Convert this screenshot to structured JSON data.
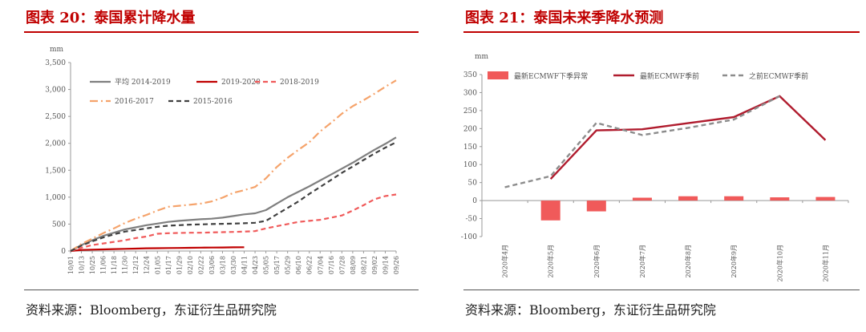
{
  "left": {
    "title": "图表 20：泰国累计降水量",
    "source": "资料来源：Bloomberg，东证衍生品研究院",
    "chart_data": {
      "type": "line",
      "title": "图表 20：泰国累计降水量",
      "ylabel": "mm",
      "ylim": [
        0,
        3500
      ],
      "yticks": [
        "0",
        "500",
        "1,000",
        "1,500",
        "2,000",
        "2,500",
        "3,000",
        "3,500"
      ],
      "xticks": [
        "10/01",
        "10/13",
        "10/25",
        "11/06",
        "11/18",
        "11/30",
        "12/12",
        "12/24",
        "01/05",
        "01/17",
        "01/29",
        "02/10",
        "02/22",
        "03/06",
        "03/18",
        "03/30",
        "04/11",
        "04/23",
        "05/05",
        "05/17",
        "05/29",
        "06/10",
        "06/22",
        "07/04",
        "07/16",
        "07/28",
        "08/09",
        "08/21",
        "09/02",
        "09/14",
        "09/26"
      ],
      "legend_position": "top-left",
      "grid": false,
      "series": [
        {
          "name": "平均 2014-2019",
          "color": "#7f7f7f",
          "style": "solid",
          "values": [
            0,
            110,
            200,
            280,
            340,
            400,
            440,
            480,
            510,
            540,
            560,
            575,
            590,
            600,
            620,
            650,
            680,
            700,
            760,
            880,
            1000,
            1100,
            1200,
            1310,
            1420,
            1530,
            1640,
            1760,
            1880,
            1990,
            2110
          ]
        },
        {
          "name": "2019-2020",
          "color": "#c00000",
          "style": "solid",
          "values": [
            0,
            20,
            25,
            30,
            35,
            40,
            45,
            50,
            52,
            55,
            57,
            60,
            62,
            64,
            66,
            68,
            70
          ]
        },
        {
          "name": "2018-2019",
          "color": "#f05a5a",
          "style": "dash",
          "values": [
            0,
            60,
            110,
            140,
            170,
            200,
            240,
            270,
            320,
            330,
            335,
            340,
            340,
            345,
            350,
            355,
            360,
            370,
            420,
            460,
            500,
            540,
            560,
            580,
            620,
            660,
            750,
            850,
            960,
            1020,
            1050
          ]
        },
        {
          "name": "2016-2017",
          "color": "#f5a36b",
          "style": "dashdot",
          "values": [
            0,
            130,
            230,
            330,
            420,
            520,
            600,
            670,
            750,
            820,
            840,
            860,
            880,
            920,
            990,
            1080,
            1130,
            1190,
            1350,
            1560,
            1730,
            1880,
            2020,
            2220,
            2380,
            2550,
            2690,
            2800,
            2920,
            3050,
            3170
          ]
        },
        {
          "name": "2015-2016",
          "color": "#404040",
          "style": "dash",
          "values": [
            0,
            100,
            180,
            250,
            310,
            360,
            390,
            420,
            450,
            470,
            480,
            490,
            495,
            500,
            505,
            510,
            515,
            525,
            560,
            680,
            800,
            920,
            1060,
            1190,
            1320,
            1450,
            1570,
            1690,
            1810,
            1920,
            2020
          ]
        }
      ]
    }
  },
  "right": {
    "title": "图表 21：泰国未来季降水预测",
    "source": "资料来源：Bloomberg，东证衍生品研究院",
    "chart_data": {
      "type": "bar",
      "title": "图表 21：泰国未来季降水预测",
      "ylabel": "mm",
      "ylim": [
        -100,
        350
      ],
      "yticks": [
        "-100",
        "-50",
        "0",
        "50",
        "100",
        "150",
        "200",
        "250",
        "300",
        "350"
      ],
      "categories": [
        "2020年4月",
        "2020年5月",
        "2020年6月",
        "2020年7月",
        "2020年8月",
        "2020年9月",
        "2020年10月",
        "2020年11月"
      ],
      "legend_position": "top",
      "grid": false,
      "series": [
        {
          "name": "最新ECMWF下季异常",
          "type": "bar",
          "color": "#f05a5a",
          "values": [
            null,
            -55,
            -30,
            8,
            12,
            12,
            9,
            10
          ]
        },
        {
          "name": "最新ECMWF季前",
          "type": "line",
          "color": "#b01c2e",
          "style": "solid",
          "values": [
            null,
            60,
            195,
            198,
            215,
            232,
            290,
            168
          ]
        },
        {
          "name": "之前ECMWF季前",
          "type": "line",
          "color": "#8c8c8c",
          "style": "dash",
          "values": [
            37,
            68,
            216,
            182,
            202,
            225,
            290,
            null
          ]
        }
      ]
    }
  }
}
